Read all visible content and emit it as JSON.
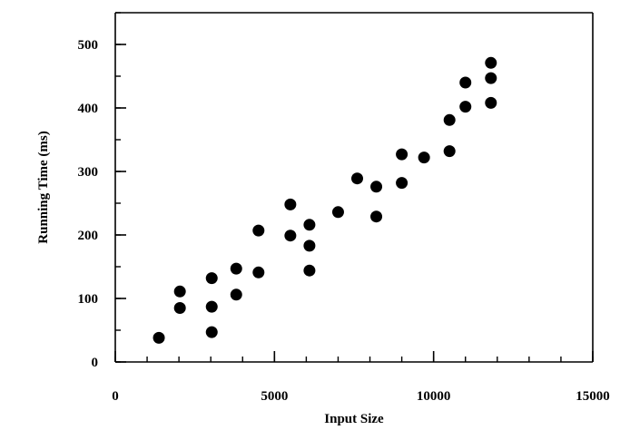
{
  "chart_data": {
    "type": "scatter",
    "title": "",
    "xlabel": "Input Size",
    "ylabel": "Running Time (ms)",
    "xlim": [
      0,
      15000
    ],
    "ylim": [
      0,
      550
    ],
    "x_ticks": [
      {
        "value": 0,
        "label": "0"
      },
      {
        "value": 5000,
        "label": "5000"
      },
      {
        "value": 10000,
        "label": "10000"
      },
      {
        "value": 15000,
        "label": "15000"
      }
    ],
    "y_ticks": [
      {
        "value": 0,
        "label": "0"
      },
      {
        "value": 100,
        "label": "100"
      },
      {
        "value": 200,
        "label": "200"
      },
      {
        "value": 300,
        "label": "300"
      },
      {
        "value": 400,
        "label": "400"
      },
      {
        "value": 500,
        "label": "500"
      }
    ],
    "x_minor_step": 1000,
    "y_minor_step": 50,
    "grid": false,
    "marker_color": "#000000",
    "series": [
      {
        "x": [
          1370,
          2030,
          2030,
          3030,
          3030,
          3030,
          3800,
          3800,
          4500,
          4500,
          5500,
          5500,
          6100,
          6100,
          6100,
          7000,
          7600,
          8200,
          8200,
          9000,
          9000,
          9700,
          10500,
          10500,
          11000,
          11000,
          11800,
          11800,
          11800
        ],
        "y": [
          38,
          85,
          111,
          47,
          87,
          132,
          106,
          147,
          141,
          207,
          199,
          248,
          144,
          183,
          216,
          236,
          289,
          229,
          276,
          282,
          327,
          322,
          332,
          381,
          402,
          440,
          408,
          447,
          471
        ]
      }
    ]
  }
}
